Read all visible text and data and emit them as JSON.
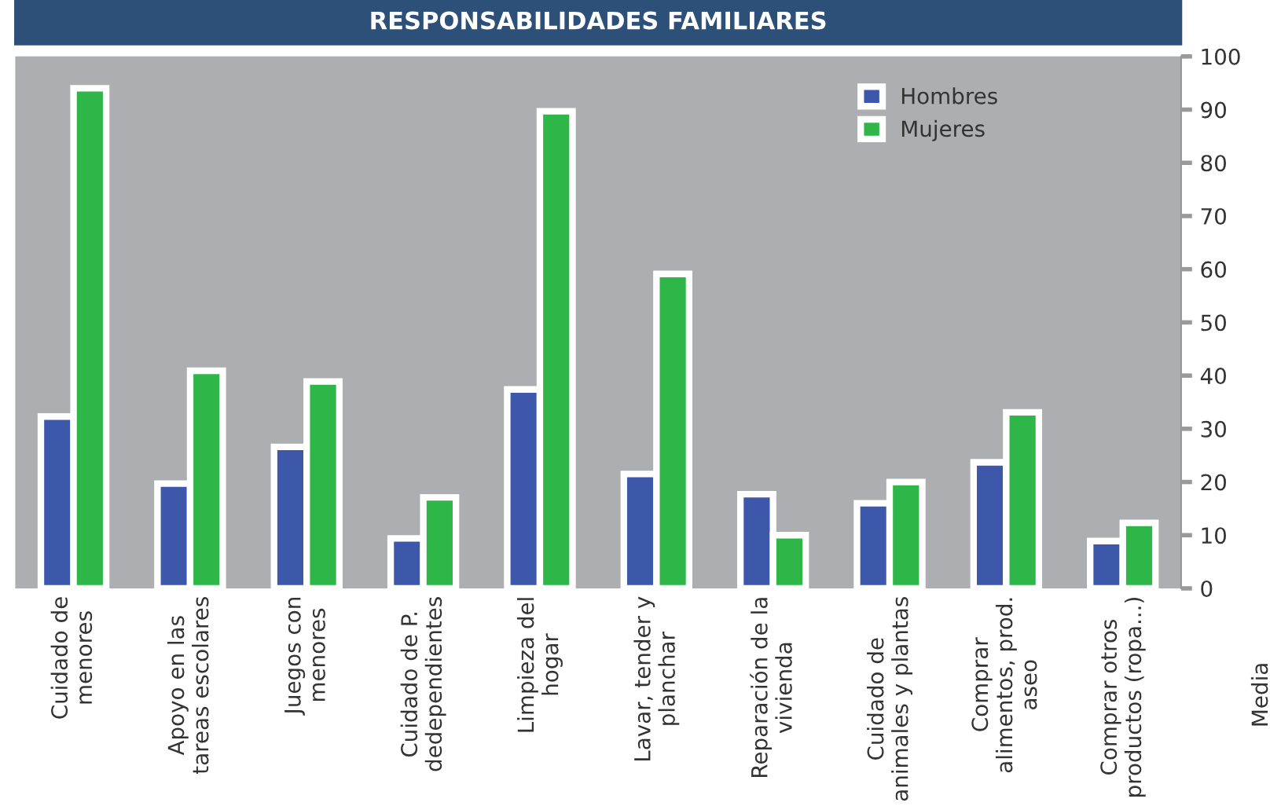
{
  "chart_data": {
    "type": "bar",
    "title": "RESPONSABILIDADES FAMILIARES",
    "ylabel": "Media",
    "categories": [
      "Cuidado de\nmenores",
      "Apoyo en las\ntareas escolares",
      "Juegos con\nmenores",
      "Cuidado de P.\ndedependientes",
      "Limpieza del\nhogar",
      "Lavar, tender y\nplanchar",
      "Reparación de la\nvivienda",
      "Cuidado de\nanimales y plantas",
      "Comprar\nalimentos, prod.\naseo",
      "Comprar otros\nproductos (ropa...)"
    ],
    "series": [
      {
        "name": "Hombres",
        "color": "#3d57ab",
        "values": [
          32.3,
          19.7,
          26.6,
          9.4,
          37.4,
          21.5,
          17.7,
          16,
          23.7,
          8.9
        ]
      },
      {
        "name": "Mujeres",
        "color": "#2eb648",
        "values": [
          94,
          40.9,
          38.9,
          17.1,
          89.7,
          59.1,
          10,
          20,
          33.1,
          12.3
        ]
      }
    ],
    "ylim": [
      0,
      100
    ],
    "yticks": [
      0,
      10,
      20,
      30,
      40,
      50,
      60,
      70,
      80,
      90,
      100
    ],
    "grid": false,
    "legend": "top right"
  }
}
